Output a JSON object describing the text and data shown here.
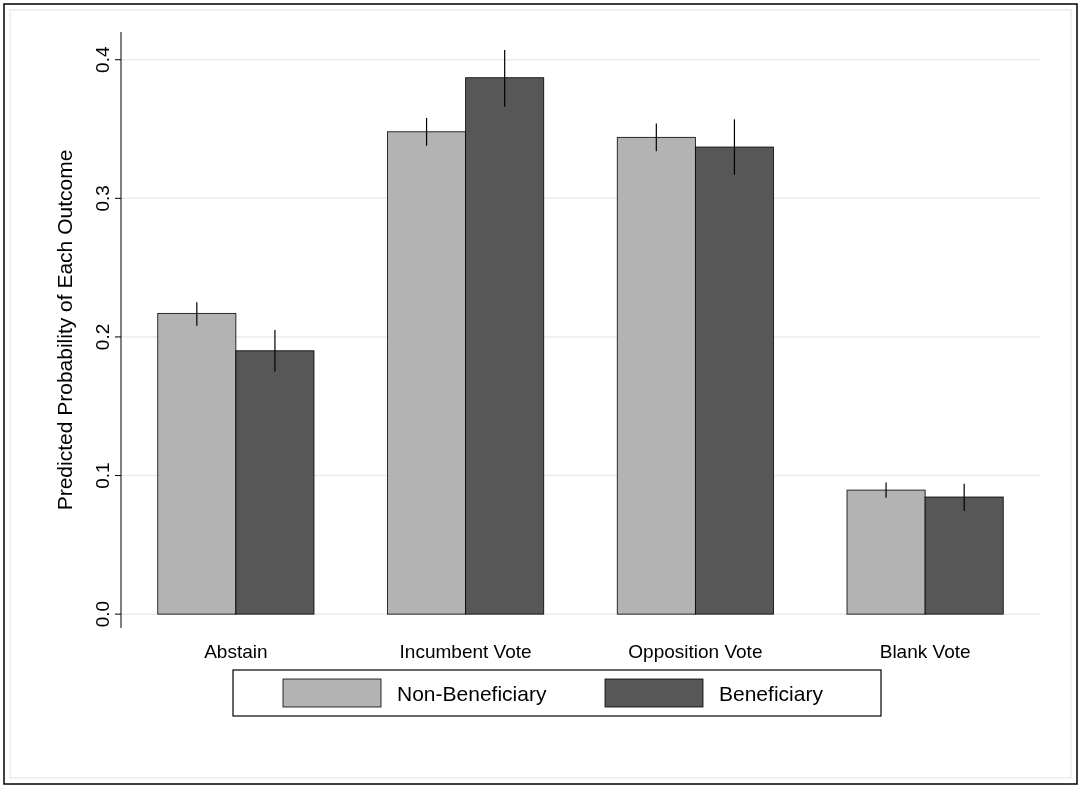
{
  "chart_data": {
    "type": "bar",
    "ylabel": "Predicted Probability of Each Outcome",
    "categories": [
      "Abstain",
      "Incumbent Vote",
      "Opposition Vote",
      "Blank Vote"
    ],
    "series": [
      {
        "name": "Non-Beneficiary",
        "color": "#b3b3b3",
        "values": [
          0.217,
          0.348,
          0.344,
          0.0895
        ],
        "errors": [
          [
            0.208,
            0.225
          ],
          [
            0.338,
            0.358
          ],
          [
            0.334,
            0.354
          ],
          [
            0.084,
            0.095
          ]
        ]
      },
      {
        "name": "Beneficiary",
        "color": "#575757",
        "values": [
          0.19,
          0.387,
          0.337,
          0.0845
        ],
        "errors": [
          [
            0.175,
            0.205
          ],
          [
            0.366,
            0.407
          ],
          [
            0.317,
            0.357
          ],
          [
            0.0745,
            0.094
          ]
        ]
      }
    ],
    "ylim": [
      -0.01,
      0.42
    ],
    "yticks": [
      {
        "value": 0,
        "label": "0.0"
      },
      0.1,
      0.2,
      0.3,
      0.4
    ],
    "grid": "y",
    "legend": "bottom"
  }
}
